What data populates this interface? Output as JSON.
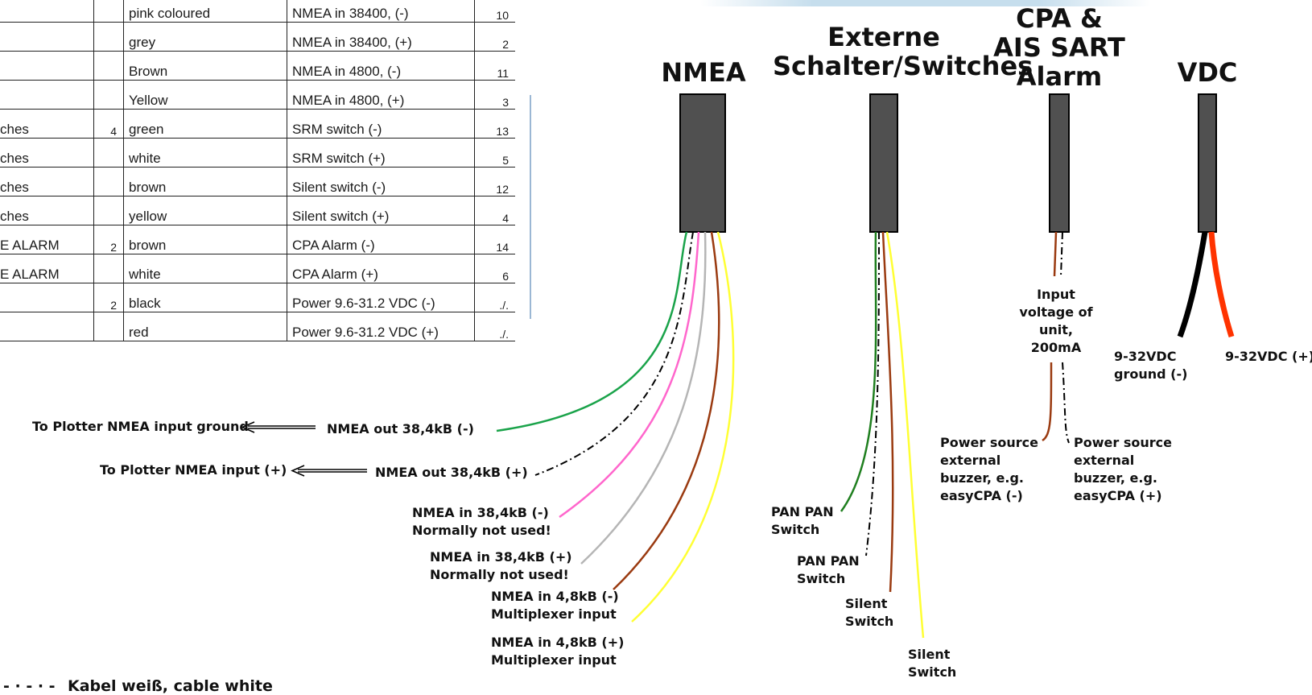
{
  "table": {
    "rows": [
      {
        "c0": "",
        "c1": "",
        "c2": "pink coloured",
        "c3": "NMEA in 38400, (-)",
        "c4": "10"
      },
      {
        "c0": "",
        "c1": "",
        "c2": "grey",
        "c3": "NMEA in 38400, (+)",
        "c4": "2"
      },
      {
        "c0": "",
        "c1": "",
        "c2": "Brown",
        "c3": "NMEA in 4800, (-)",
        "c4": "11"
      },
      {
        "c0": "",
        "c1": "",
        "c2": "Yellow",
        "c3": "NMEA in 4800, (+)",
        "c4": "3"
      },
      {
        "c0": "ches",
        "c1": "4",
        "c2": "green",
        "c3": "SRM switch (-)",
        "c4": "13"
      },
      {
        "c0": "ches",
        "c1": "",
        "c2": "white",
        "c3": "SRM switch (+)",
        "c4": "5"
      },
      {
        "c0": "ches",
        "c1": "",
        "c2": "brown",
        "c3": "Silent switch (-)",
        "c4": "12"
      },
      {
        "c0": "ches",
        "c1": "",
        "c2": "yellow",
        "c3": "Silent switch (+)",
        "c4": "4"
      },
      {
        "c0": "E ALARM",
        "c1": "2",
        "c2": "brown",
        "c3": "CPA Alarm (-)",
        "c4": "14"
      },
      {
        "c0": "E ALARM",
        "c1": "",
        "c2": "white",
        "c3": "CPA Alarm (+)",
        "c4": "6"
      },
      {
        "c0": "",
        "c1": "2",
        "c2": "black",
        "c3": "Power 9.6-31.2 VDC (-)",
        "c4": "./."
      },
      {
        "c0": "",
        "c1": "",
        "c2": "red",
        "c3": "Power 9.6-31.2 VDC (+)",
        "c4": "./."
      }
    ]
  },
  "headers": {
    "nmea": "NMEA",
    "switches_1": "Externe",
    "switches_2": "Schalter/Switches",
    "cpa_1": "CPA &",
    "cpa_2": "AIS SART",
    "cpa_3": "Alarm",
    "vdc": "VDC"
  },
  "nmea_labels": {
    "plotter_ground": "To Plotter NMEA input ground",
    "out_minus": "NMEA out 38,4kB (-)",
    "plotter_plus": "To Plotter NMEA input (+)",
    "out_plus": "NMEA out 38,4kB (+)",
    "in38_minus_1": "NMEA in 38,4kB (-)",
    "in38_minus_2": "Normally not used!",
    "in38_plus_1": "NMEA in 38,4kB (+)",
    "in38_plus_2": "Normally not used!",
    "in48_minus_1": "NMEA in 4,8kB (-)",
    "in48_minus_2": "Multiplexer input",
    "in48_plus_1": "NMEA in 4,8kB (+)",
    "in48_plus_2": "Multiplexer input"
  },
  "switch_labels": {
    "panpan_1_a": "PAN PAN",
    "panpan_1_b": "Switch",
    "panpan_2_a": "PAN PAN",
    "panpan_2_b": "Switch",
    "silent_1_a": "Silent",
    "silent_1_b": "Switch",
    "silent_2_a": "Silent",
    "silent_2_b": "Switch"
  },
  "cpa_labels": {
    "input_1": "Input",
    "input_2": "voltage of",
    "input_3": "unit,",
    "input_4": "200mA",
    "ps_minus_1": "Power source",
    "ps_minus_2": "external",
    "ps_minus_3": "buzzer, e.g.",
    "ps_minus_4": "easyCPA (-)",
    "ps_plus_1": "Power source",
    "ps_plus_2": "external",
    "ps_plus_3": "buzzer, e.g.",
    "ps_plus_4": "easyCPA (+)"
  },
  "vdc_labels": {
    "ground_1": "9-32VDC",
    "ground_2": "ground (-)",
    "plus": "9-32VDC (+)"
  },
  "legend": {
    "symbol": "- · - · -",
    "text": "Kabel weiß, cable white"
  },
  "colors": {
    "cable_body": "#505050",
    "green": "#1aa34a",
    "dark_green": "#1f7f1f",
    "pink": "#ff66cc",
    "grey": "#b5b5b5",
    "brown": "#9a3a10",
    "yellow": "#ffff33",
    "black": "#000000",
    "red": "#ff3300",
    "white_cable": "#000000"
  }
}
